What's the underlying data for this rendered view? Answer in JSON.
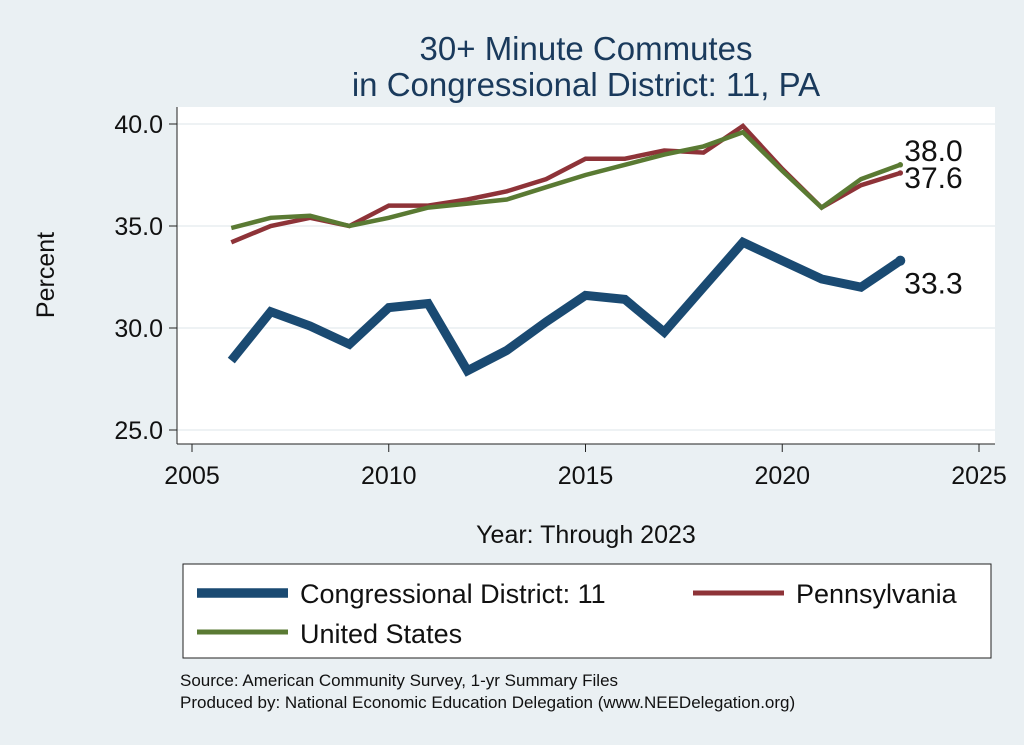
{
  "chart_data": {
    "type": "line",
    "title": [
      "30+ Minute Commutes",
      "in Congressional District:  11, PA"
    ],
    "xlabel": "Year: Through 2023",
    "ylabel": "Percent",
    "xlim": [
      2005,
      2025
    ],
    "ylim": [
      25,
      40
    ],
    "xticks": [
      2005,
      2010,
      2015,
      2020,
      2025
    ],
    "yticks": [
      25,
      30,
      35,
      40
    ],
    "ytick_labels": [
      "25.0",
      "30.0",
      "35.0",
      "40.0"
    ],
    "xtick_labels": [
      "2005",
      "2010",
      "2015",
      "2020",
      "2025"
    ],
    "series": [
      {
        "name": "Congressional District:  11",
        "color": "#1a4a72",
        "width": "thick",
        "x": [
          2006,
          2007,
          2008,
          2009,
          2010,
          2011,
          2012,
          2013,
          2014,
          2015,
          2016,
          2017,
          2018,
          2019,
          2020,
          2021,
          2022,
          2023
        ],
        "values": [
          28.4,
          30.8,
          30.1,
          29.2,
          31.0,
          31.2,
          27.9,
          28.9,
          30.3,
          31.6,
          31.4,
          29.8,
          32.0,
          34.2,
          33.3,
          32.4,
          32.0,
          33.3
        ],
        "end_label": "33.3"
      },
      {
        "name": "Pennsylvania",
        "color": "#8e3338",
        "width": "medium",
        "x": [
          2006,
          2007,
          2008,
          2009,
          2010,
          2011,
          2012,
          2013,
          2014,
          2015,
          2016,
          2017,
          2018,
          2019,
          2020,
          2021,
          2022,
          2023
        ],
        "values": [
          34.2,
          35.0,
          35.4,
          35.0,
          36.0,
          36.0,
          36.3,
          36.7,
          37.3,
          38.3,
          38.3,
          38.7,
          38.6,
          39.9,
          37.8,
          35.9,
          37.0,
          37.6
        ],
        "end_label": "37.6"
      },
      {
        "name": "United States",
        "color": "#5a7a33",
        "width": "medium",
        "x": [
          2006,
          2007,
          2008,
          2009,
          2010,
          2011,
          2012,
          2013,
          2014,
          2015,
          2016,
          2017,
          2018,
          2019,
          2020,
          2021,
          2022,
          2023
        ],
        "values": [
          34.9,
          35.4,
          35.5,
          35.0,
          35.4,
          35.9,
          36.1,
          36.3,
          36.9,
          37.5,
          38.0,
          38.5,
          38.9,
          39.6,
          37.7,
          35.9,
          37.3,
          38.0
        ],
        "end_label": "38.0"
      }
    ],
    "legend": {
      "position": "bottom"
    },
    "source_lines": [
      "Source: American Community Survey, 1-yr Summary Files",
      "Produced by: National Economic Education Delegation (www.NEEDelegation.org)"
    ]
  }
}
